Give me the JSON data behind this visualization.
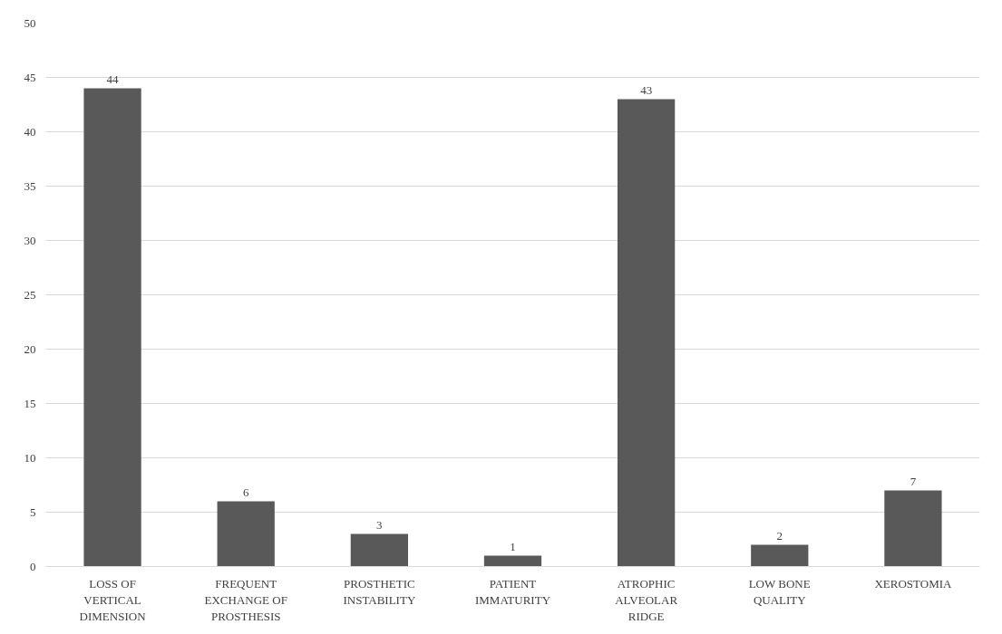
{
  "chart_data": {
    "type": "bar",
    "categories": [
      "LOSS OF\nVERTICAL\nDIMENSION",
      "FREQUENT\nEXCHANGE OF\nPROSTHESIS",
      "PROSTHETIC\nINSTABILITY",
      "PATIENT\nIMMATURITY",
      "ATROPHIC\nALVEOLAR\nRIDGE",
      "LOW BONE\nQUALITY",
      "XEROSTOMIA"
    ],
    "values": [
      44,
      6,
      3,
      1,
      43,
      2,
      7
    ],
    "color": "#595959",
    "ylim": [
      0,
      50
    ],
    "yticks": [
      0,
      5,
      10,
      15,
      20,
      25,
      30,
      35,
      40,
      45,
      50
    ],
    "grid": "y",
    "data_labels": true
  }
}
